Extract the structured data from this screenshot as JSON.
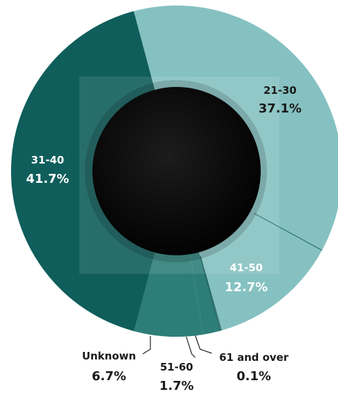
{
  "chart_data": {
    "type": "pie",
    "variant": "donut",
    "title": "",
    "categories": [
      "21-30",
      "41-50",
      "61 and over",
      "51-60",
      "Unknown",
      "31-40"
    ],
    "values": [
      37.1,
      12.7,
      0.1,
      1.7,
      6.7,
      41.7
    ],
    "value_labels": [
      "37.1%",
      "12.7%",
      "0.1%",
      "1.7%",
      "6.7%",
      "41.7%"
    ],
    "colors": [
      "#86c1c1",
      "#86c1c1",
      "#86c1c1",
      "#2d7e79",
      "#2d7e79",
      "#0f5e5b"
    ],
    "legend": "none"
  }
}
